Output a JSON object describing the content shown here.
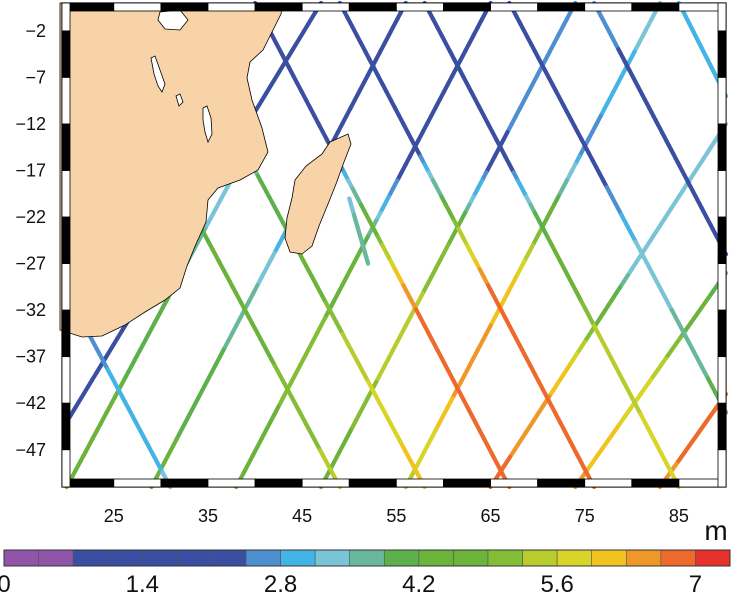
{
  "map": {
    "lon_ticks": [
      "25",
      "35",
      "45",
      "55",
      "65",
      "75",
      "85"
    ],
    "lat_ticks": [
      "−2",
      "−7",
      "−12",
      "−17",
      "−22",
      "−27",
      "−32",
      "−37",
      "−42",
      "−47"
    ],
    "lon_values": [
      25,
      35,
      45,
      55,
      65,
      75,
      85
    ],
    "lat_values": [
      -2,
      -7,
      -12,
      -17,
      -22,
      -27,
      -32,
      -37,
      -42,
      -47
    ],
    "lon_range": [
      19.5,
      90
    ],
    "lat_range": [
      -51,
      1
    ],
    "land_color": "#f8d3a7",
    "land_features": [
      "Africa",
      "Madagascar",
      "Lake Victoria",
      "Lake Tanganyika",
      "Lake Malawi"
    ],
    "tracks": [
      {
        "lon0": 47,
        "lat0": 1,
        "lon1": 20,
        "lat1": -44,
        "stops": [
          [
            0,
            1.6
          ],
          [
            0.55,
            1.9
          ],
          [
            1,
            2.4
          ]
        ]
      },
      {
        "lon0": 56,
        "lat0": 1,
        "lon1": 29,
        "lat1": -51,
        "stops": [
          [
            0,
            1.9
          ],
          [
            0.35,
            2.2
          ],
          [
            0.6,
            3.6
          ],
          [
            1,
            4.4
          ]
        ]
      },
      {
        "lon0": 65,
        "lat0": 1,
        "lon1": 38,
        "lat1": -51,
        "stops": [
          [
            0,
            1.4
          ],
          [
            0.3,
            1.6
          ],
          [
            0.55,
            4.6
          ],
          [
            0.75,
            5.2
          ],
          [
            1,
            4.2
          ]
        ]
      },
      {
        "lon0": 74,
        "lat0": 1,
        "lon1": 47,
        "lat1": -51,
        "stops": [
          [
            0,
            2.6
          ],
          [
            0.35,
            2.4
          ],
          [
            0.5,
            4.9
          ],
          [
            0.7,
            5.6
          ],
          [
            1,
            4.4
          ]
        ]
      },
      {
        "lon0": 83,
        "lat0": 1,
        "lon1": 56,
        "lat1": -51,
        "stops": [
          [
            0,
            3.4
          ],
          [
            0.3,
            2.6
          ],
          [
            0.55,
            5.9
          ],
          [
            0.75,
            6.6
          ],
          [
            1,
            5.4
          ]
        ]
      },
      {
        "lon0": 90,
        "lat0": -12,
        "lon1": 65,
        "lat1": -51,
        "stops": [
          [
            0,
            3.2
          ],
          [
            0.4,
            3.4
          ],
          [
            0.7,
            6.2
          ],
          [
            1,
            6.8
          ]
        ]
      },
      {
        "lon0": 90,
        "lat0": -28,
        "lon1": 74,
        "lat1": -51,
        "stops": [
          [
            0,
            3.8
          ],
          [
            0.5,
            5.6
          ],
          [
            1,
            6.4
          ]
        ]
      },
      {
        "lon0": 90,
        "lat0": -41,
        "lon1": 83,
        "lat1": -51,
        "stops": [
          [
            0,
            6.8
          ],
          [
            1,
            6.6
          ]
        ]
      },
      {
        "lon0": 38,
        "lat0": -17,
        "lon1": 20,
        "lat1": -51,
        "stops": [
          [
            0,
            3.2
          ],
          [
            0.5,
            4.0
          ],
          [
            1,
            4.6
          ]
        ]
      },
      {
        "lon0": 40,
        "lat0": 1,
        "lon1": 67,
        "lat1": -51,
        "stops": [
          [
            0,
            1.2
          ],
          [
            0.25,
            1.4
          ],
          [
            0.45,
            4.4
          ],
          [
            0.6,
            6.6
          ],
          [
            0.85,
            6.9
          ],
          [
            1,
            6.8
          ]
        ]
      },
      {
        "lon0": 49,
        "lat0": 1,
        "lon1": 76,
        "lat1": -51,
        "stops": [
          [
            0,
            1.6
          ],
          [
            0.3,
            2.0
          ],
          [
            0.45,
            5.0
          ],
          [
            0.6,
            6.8
          ],
          [
            1,
            6.8
          ]
        ]
      },
      {
        "lon0": 58,
        "lat0": 1,
        "lon1": 85,
        "lat1": -51,
        "stops": [
          [
            0,
            1.5
          ],
          [
            0.3,
            1.8
          ],
          [
            0.45,
            4.0
          ],
          [
            0.7,
            5.4
          ],
          [
            1,
            5.8
          ]
        ]
      },
      {
        "lon0": 67,
        "lat0": 1,
        "lon1": 90,
        "lat1": -43,
        "stops": [
          [
            0,
            2.4
          ],
          [
            0.35,
            2.0
          ],
          [
            0.6,
            3.2
          ],
          [
            1,
            4.0
          ]
        ]
      },
      {
        "lon0": 76,
        "lat0": 1,
        "lon1": 90,
        "lat1": -26,
        "stops": [
          [
            0,
            2.6
          ],
          [
            0.5,
            2.2
          ],
          [
            1,
            2.4
          ]
        ]
      },
      {
        "lon0": 85,
        "lat0": 1,
        "lon1": 90,
        "lat1": -9,
        "stops": [
          [
            0,
            2.8
          ],
          [
            1,
            3.0
          ]
        ]
      },
      {
        "lon0": 40,
        "lat0": -17,
        "lon1": 58,
        "lat1": -51,
        "stops": [
          [
            0,
            3.8
          ],
          [
            0.3,
            4.4
          ],
          [
            0.55,
            5.4
          ],
          [
            1,
            6.2
          ]
        ]
      },
      {
        "lon0": 31,
        "lat0": -17,
        "lon1": 49,
        "lat1": -51,
        "stops": [
          [
            0,
            3.6
          ],
          [
            0.4,
            4.6
          ],
          [
            1,
            5.4
          ]
        ]
      },
      {
        "lon0": 21,
        "lat0": -32,
        "lon1": 31,
        "lat1": -51,
        "stops": [
          [
            0,
            2.6
          ],
          [
            1,
            3.2
          ]
        ]
      },
      {
        "lon0": 50,
        "lat0": -20,
        "lon1": 52,
        "lat1": -27,
        "stops": [
          [
            0,
            3.4
          ],
          [
            1,
            3.8
          ]
        ]
      }
    ],
    "colorbar": {
      "colors": [
        "#9055a9",
        "#9055a9",
        "#3a4fa1",
        "#3a4fa1",
        "#3a4fa1",
        "#3a4fa1",
        "#3a4fa1",
        "#4e8fd1",
        "#43b4e4",
        "#79c4d6",
        "#69b89b",
        "#5cb14c",
        "#6bb33a",
        "#6bb33a",
        "#84bd36",
        "#b8cc2e",
        "#d8d428",
        "#f0c320",
        "#ef9729",
        "#ee6a2c",
        "#e7322c"
      ],
      "tick_labels": [
        "0",
        "1.4",
        "2.8",
        "4.2",
        "5.6",
        "7"
      ],
      "tick_values": [
        0,
        1.4,
        2.8,
        4.2,
        5.6,
        7
      ],
      "range": [
        0,
        7.35
      ],
      "unit": "m"
    }
  }
}
